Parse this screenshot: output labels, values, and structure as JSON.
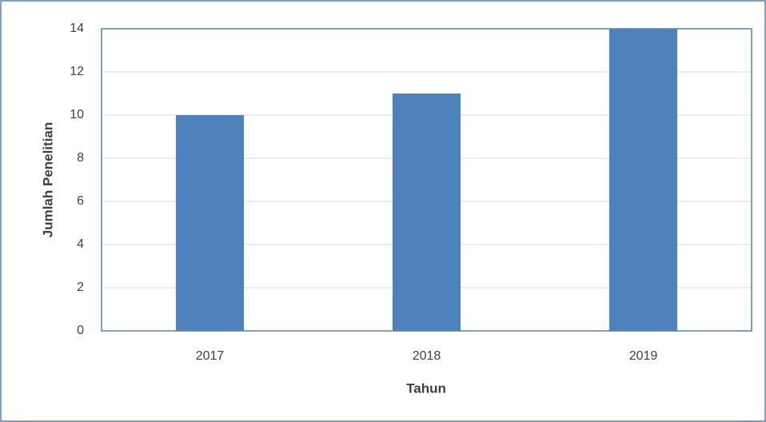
{
  "chart_data": {
    "type": "bar",
    "categories": [
      "2017",
      "2018",
      "2019"
    ],
    "values": [
      10,
      11,
      14
    ],
    "color": "#4f81bd",
    "xlabel": "Tahun",
    "ylabel": "Jumlah Penelitian",
    "ylim": [
      0,
      14
    ],
    "yticks": [
      0,
      2,
      4,
      6,
      8,
      10,
      12,
      14
    ],
    "grid": true
  }
}
